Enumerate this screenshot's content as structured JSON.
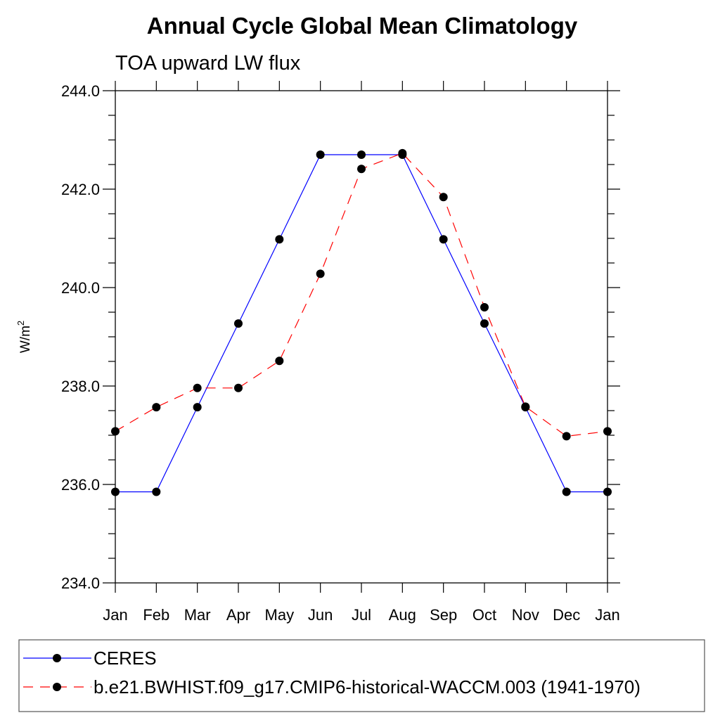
{
  "chart_data": {
    "type": "line",
    "title": "Annual Cycle Global Mean Climatology",
    "subtitle": "TOA upward LW flux",
    "ylabel": "W/m",
    "ylabel_sup": "2",
    "ylim": [
      234.0,
      244.0
    ],
    "yticks": [
      "244.0",
      "242.0",
      "240.0",
      "238.0",
      "236.0",
      "234.0"
    ],
    "ytick_values": [
      244,
      242,
      240,
      238,
      236,
      234
    ],
    "categories": [
      "Jan",
      "Feb",
      "Mar",
      "Apr",
      "May",
      "Jun",
      "Jul",
      "Aug",
      "Sep",
      "Oct",
      "Nov",
      "Dec",
      "Jan"
    ],
    "grid": false,
    "legend_position": "bottom",
    "series": [
      {
        "name": "CERES",
        "color": "#0000ff",
        "style": "solid",
        "marker": "circle",
        "values": [
          235.85,
          235.85,
          237.57,
          239.27,
          240.98,
          242.7,
          242.7,
          242.7,
          240.98,
          239.27,
          237.57,
          235.85,
          235.85
        ]
      },
      {
        "name": "b.e21.BWHIST.f09_g17.CMIP6-historical-WACCM.003 (1941-1970)",
        "color": "#ff0000",
        "style": "dashed",
        "marker": "circle",
        "values": [
          237.08,
          237.57,
          237.96,
          237.96,
          238.51,
          240.28,
          242.41,
          242.73,
          241.84,
          239.6,
          237.58,
          236.98,
          237.08
        ]
      }
    ]
  }
}
